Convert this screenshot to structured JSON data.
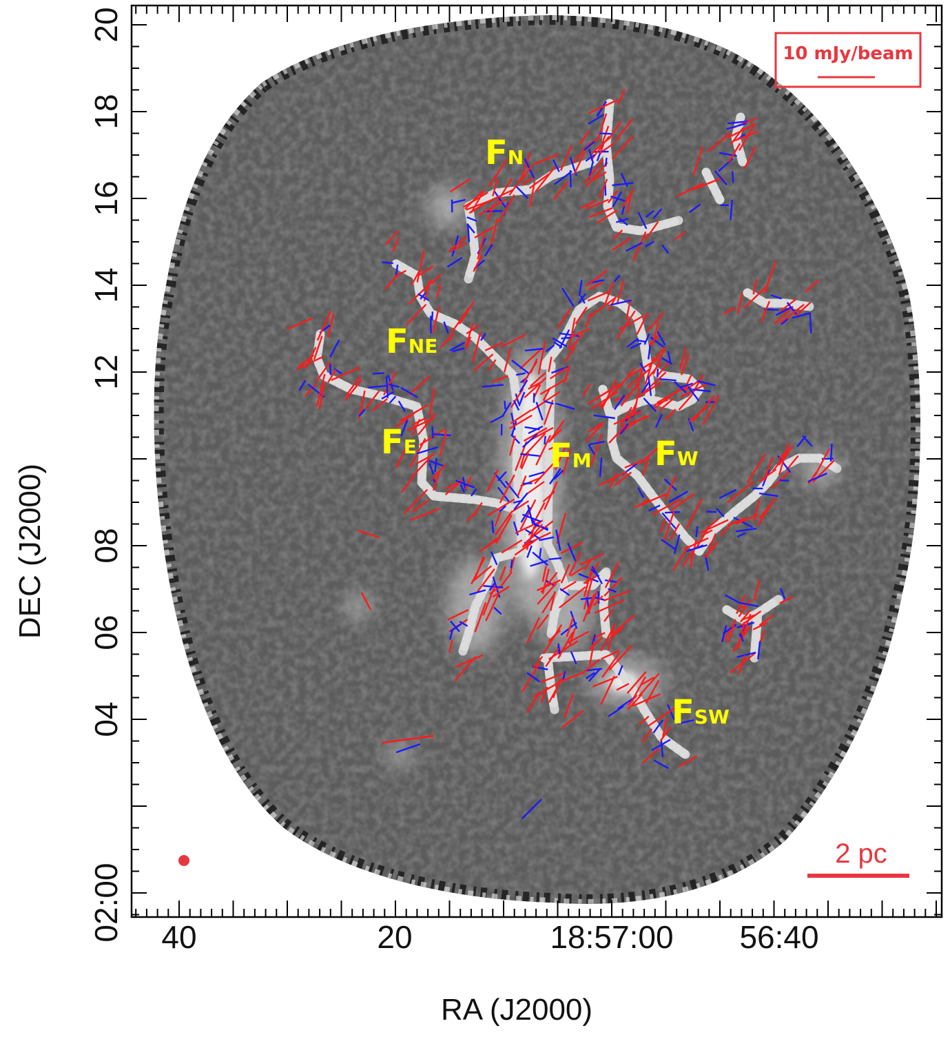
{
  "figure": {
    "xlabel": "RA (J2000)",
    "ylabel": "DEC (J2000)",
    "x_ticks": [
      "40",
      "20",
      "18:57:00",
      "56:40"
    ],
    "y_ticks": [
      "20",
      "18",
      "16",
      "14",
      "12",
      "08",
      "06",
      "04",
      "02:00"
    ],
    "legend": {
      "label": "10 mJy/beam",
      "color": "#e8373f"
    },
    "scale_bar": {
      "label": "2 pc",
      "color": "#e8373f"
    },
    "beam": {
      "color": "#e8373f"
    },
    "colors": {
      "vector_red": "#ff1a1a",
      "vector_blue": "#1a1aff",
      "filament_spine": "#d4d4d4",
      "label": "#ffff00"
    }
  },
  "filaments": [
    {
      "id": "F",
      "sub": "N"
    },
    {
      "id": "F",
      "sub": "NE"
    },
    {
      "id": "F",
      "sub": "E"
    },
    {
      "id": "F",
      "sub": "M"
    },
    {
      "id": "F",
      "sub": "W"
    },
    {
      "id": "F",
      "sub": "SW"
    }
  ]
}
